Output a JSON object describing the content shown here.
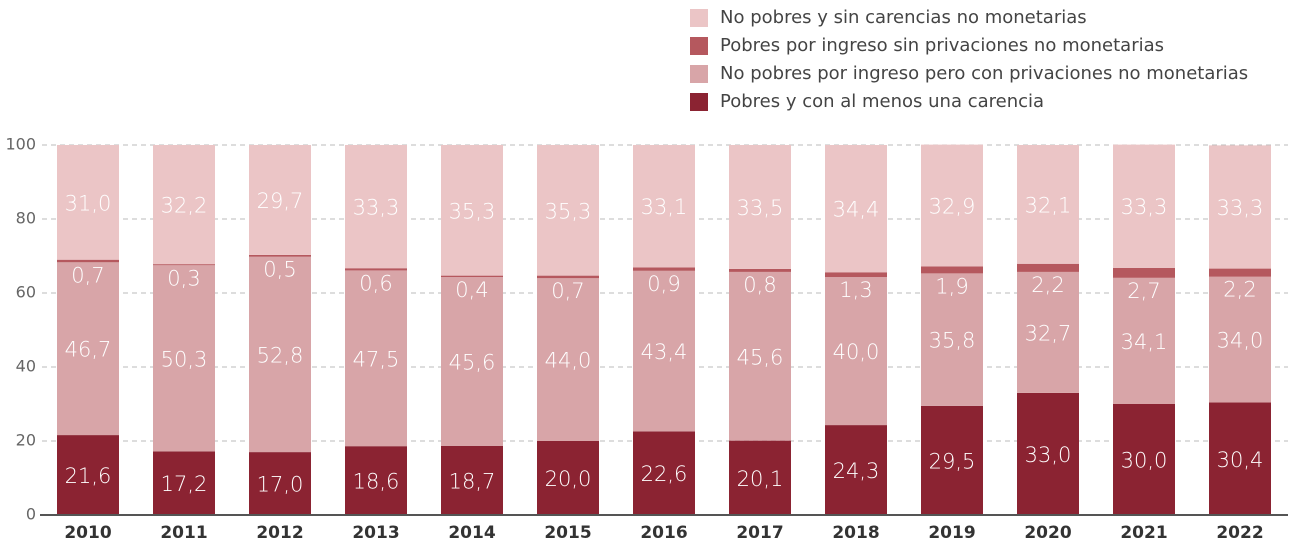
{
  "chart_data": {
    "type": "stacked_bar",
    "categories": [
      "2010",
      "2011",
      "2012",
      "2013",
      "2014",
      "2015",
      "2016",
      "2017",
      "2018",
      "2019",
      "2020",
      "2021",
      "2022"
    ],
    "series": [
      {
        "name": "Pobres y con al menos una carencia",
        "color": "#8b2332",
        "values": [
          21.6,
          17.2,
          17.0,
          18.6,
          18.7,
          20.0,
          22.6,
          20.1,
          24.3,
          29.5,
          33.0,
          30.0,
          30.4
        ],
        "value_labels": [
          "21,6",
          "17,2",
          "17,0",
          "18,6",
          "18,7",
          "20,0",
          "22,6",
          "20,1",
          "24,3",
          "29,5",
          "33,0",
          "30,0",
          "30,4"
        ]
      },
      {
        "name": "No pobres por ingreso pero con privaciones no monetarias",
        "color": "#d8a5a8",
        "values": [
          46.7,
          50.3,
          52.8,
          47.5,
          45.6,
          44.0,
          43.4,
          45.6,
          40.0,
          35.8,
          32.7,
          34.1,
          34.0
        ],
        "value_labels": [
          "46,7",
          "50,3",
          "52,8",
          "47,5",
          "45,6",
          "44,0",
          "43,4",
          "45,6",
          "40,0",
          "35,8",
          "32,7",
          "34,1",
          "34,0"
        ]
      },
      {
        "name": "Pobres por ingreso sin privaciones no monetarias",
        "color": "#b5585e",
        "values": [
          0.7,
          0.3,
          0.5,
          0.6,
          0.4,
          0.7,
          0.9,
          0.8,
          1.3,
          1.9,
          2.2,
          2.7,
          2.2
        ],
        "value_labels": [
          "0,7",
          "0,3",
          "0,5",
          "0,6",
          "0,4",
          "0,7",
          "0,9",
          "0,8",
          "1,3",
          "1,9",
          "2,2",
          "2,7",
          "2,2"
        ]
      },
      {
        "name": "No pobres y sin carencias no monetarias",
        "color": "#ebc5c6",
        "values": [
          31.0,
          32.2,
          29.7,
          33.3,
          35.3,
          35.3,
          33.1,
          33.5,
          34.4,
          32.9,
          32.1,
          33.3,
          33.3
        ],
        "value_labels": [
          "31,0",
          "32,2",
          "29,7",
          "33,3",
          "35,3",
          "35,3",
          "33,1",
          "33,5",
          "34,4",
          "32,9",
          "32,1",
          "33,3",
          "33,3"
        ]
      }
    ],
    "ylim": [
      0,
      100
    ],
    "yticks": [
      0,
      20,
      40,
      60,
      80,
      100
    ],
    "grid": true,
    "legend": "top-right"
  }
}
